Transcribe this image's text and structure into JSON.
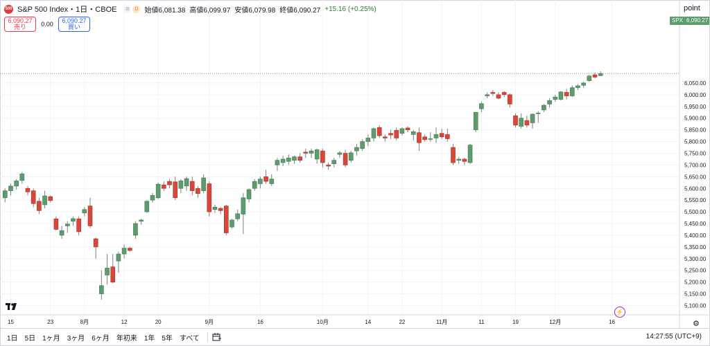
{
  "header": {
    "logo_text": "500",
    "title": "S&P 500 Index・1日・CBOE",
    "indicator_dot": "⊙",
    "delay_badge": "D",
    "open": "始値6,081.38",
    "high": "高値6,099.97",
    "low": "安値6,079.98",
    "close": "終値6,090.27",
    "change": "+15.16 (+0.25%)"
  },
  "trade": {
    "sell_price": "6,090.27",
    "sell_label": "売り",
    "spread": "0.00",
    "buy_price": "6,090.27",
    "buy_label": "買い"
  },
  "axis": {
    "unit": "point",
    "symbol_tag": "SPX",
    "last_price_tag": "6,090.27"
  },
  "bottom": {
    "ranges": [
      "1日",
      "5日",
      "1ヶ月",
      "3ヶ月",
      "6ヶ月",
      "年初来",
      "1年",
      "5年",
      "すべて"
    ],
    "clock": "14:27:55 (UTC+9)"
  },
  "colors": {
    "up": "#5d9d6d",
    "down": "#d9473a",
    "wick": "#808080",
    "grid": "#f0f3fa"
  },
  "chart_data": {
    "type": "candlestick",
    "title": "S&P 500 Index",
    "ylim": [
      5060,
      6130
    ],
    "yticks": [
      5100,
      5150,
      5200,
      5250,
      5300,
      5350,
      5400,
      5450,
      5500,
      5550,
      5600,
      5650,
      5700,
      5750,
      5800,
      5850,
      5900,
      5950,
      6000,
      6050
    ],
    "ytick_labels": [
      "5,100.00",
      "5,150.00",
      "5,200.00",
      "5,250.00",
      "5,300.00",
      "5,350.00",
      "5,400.00",
      "5,450.00",
      "5,500.00",
      "5,550.00",
      "5,600.00",
      "5,650.00",
      "5,700.00",
      "5,750.00",
      "5,800.00",
      "5,850.00",
      "5,900.00",
      "5,950.00",
      "6,000.00",
      "6,050.00"
    ],
    "xticks": [
      {
        "index": 1,
        "label": "15"
      },
      {
        "index": 8,
        "label": "23"
      },
      {
        "index": 14,
        "label": "8月"
      },
      {
        "index": 21,
        "label": "12"
      },
      {
        "index": 27,
        "label": "20"
      },
      {
        "index": 36,
        "label": "9月"
      },
      {
        "index": 45,
        "label": "16"
      },
      {
        "index": 56,
        "label": "10月"
      },
      {
        "index": 64,
        "label": "14"
      },
      {
        "index": 70,
        "label": "22"
      },
      {
        "index": 77,
        "label": "11月"
      },
      {
        "index": 84,
        "label": "11"
      },
      {
        "index": 90,
        "label": "19"
      },
      {
        "index": 97,
        "label": "12月"
      },
      {
        "index": 107,
        "label": "16"
      }
    ],
    "last_price": 6090.27,
    "candles": [
      [
        5560,
        5600,
        5540,
        5590
      ],
      [
        5590,
        5620,
        5570,
        5610
      ],
      [
        5610,
        5640,
        5595,
        5632
      ],
      [
        5634,
        5670,
        5620,
        5662
      ],
      [
        5600,
        5610,
        5570,
        5585
      ],
      [
        5590,
        5600,
        5520,
        5535
      ],
      [
        5545,
        5560,
        5490,
        5505
      ],
      [
        5530,
        5590,
        5515,
        5568
      ],
      [
        5565,
        5570,
        5540,
        5548
      ],
      [
        5470,
        5480,
        5420,
        5425
      ],
      [
        5400,
        5440,
        5385,
        5420
      ],
      [
        5440,
        5460,
        5410,
        5448
      ],
      [
        5460,
        5480,
        5440,
        5471
      ],
      [
        5470,
        5480,
        5400,
        5415
      ],
      [
        5495,
        5520,
        5480,
        5510
      ],
      [
        5525,
        5560,
        5430,
        5440
      ],
      [
        5385,
        5390,
        5300,
        5350
      ],
      [
        5150,
        5250,
        5125,
        5185
      ],
      [
        5230,
        5320,
        5190,
        5260
      ],
      [
        5265,
        5320,
        5195,
        5200
      ],
      [
        5290,
        5330,
        5240,
        5320
      ],
      [
        5320,
        5360,
        5300,
        5345
      ],
      [
        5345,
        5350,
        5330,
        5335
      ],
      [
        5400,
        5460,
        5385,
        5450
      ],
      [
        5460,
        5470,
        5445,
        5465
      ],
      [
        5500,
        5550,
        5495,
        5545
      ],
      [
        5550,
        5580,
        5540,
        5570
      ],
      [
        5560,
        5625,
        5555,
        5618
      ],
      [
        5615,
        5630,
        5590,
        5600
      ],
      [
        5630,
        5640,
        5600,
        5615
      ],
      [
        5628,
        5650,
        5550,
        5560
      ],
      [
        5600,
        5640,
        5580,
        5632
      ],
      [
        5610,
        5650,
        5590,
        5642
      ],
      [
        5630,
        5650,
        5570,
        5590
      ],
      [
        5600,
        5610,
        5560,
        5578
      ],
      [
        5590,
        5660,
        5580,
        5645
      ],
      [
        5620,
        5630,
        5480,
        5500
      ],
      [
        5510,
        5530,
        5495,
        5520
      ],
      [
        5515,
        5520,
        5490,
        5505
      ],
      [
        5525,
        5530,
        5400,
        5410
      ],
      [
        5435,
        5470,
        5430,
        5465
      ],
      [
        5470,
        5510,
        5460,
        5492
      ],
      [
        5490,
        5580,
        5405,
        5560
      ],
      [
        5555,
        5600,
        5540,
        5595
      ],
      [
        5600,
        5640,
        5590,
        5630
      ],
      [
        5620,
        5650,
        5600,
        5640
      ],
      [
        5650,
        5680,
        5620,
        5630
      ],
      [
        5620,
        5660,
        5610,
        5640
      ],
      [
        5700,
        5730,
        5675,
        5720
      ],
      [
        5710,
        5740,
        5695,
        5725
      ],
      [
        5715,
        5745,
        5700,
        5730
      ],
      [
        5720,
        5740,
        5705,
        5735
      ],
      [
        5735,
        5750,
        5710,
        5720
      ],
      [
        5755,
        5770,
        5730,
        5750
      ],
      [
        5750,
        5770,
        5730,
        5760
      ],
      [
        5725,
        5770,
        5705,
        5765
      ],
      [
        5760,
        5770,
        5690,
        5710
      ],
      [
        5700,
        5710,
        5680,
        5695
      ],
      [
        5705,
        5730,
        5690,
        5720
      ],
      [
        5745,
        5760,
        5730,
        5752
      ],
      [
        5750,
        5765,
        5690,
        5700
      ],
      [
        5720,
        5760,
        5710,
        5752
      ],
      [
        5760,
        5790,
        5740,
        5775
      ],
      [
        5770,
        5810,
        5760,
        5800
      ],
      [
        5800,
        5830,
        5780,
        5815
      ],
      [
        5815,
        5860,
        5800,
        5855
      ],
      [
        5860,
        5870,
        5815,
        5825
      ],
      [
        5820,
        5830,
        5800,
        5815
      ],
      [
        5835,
        5850,
        5810,
        5828
      ],
      [
        5848,
        5860,
        5805,
        5815
      ],
      [
        5835,
        5860,
        5825,
        5855
      ],
      [
        5858,
        5865,
        5840,
        5850
      ],
      [
        5830,
        5850,
        5805,
        5842
      ],
      [
        5838,
        5860,
        5760,
        5795
      ],
      [
        5820,
        5830,
        5800,
        5808
      ],
      [
        5810,
        5840,
        5800,
        5812
      ],
      [
        5815,
        5860,
        5795,
        5830
      ],
      [
        5835,
        5855,
        5810,
        5820
      ],
      [
        5830,
        5855,
        5800,
        5812
      ],
      [
        5775,
        5790,
        5700,
        5710
      ],
      [
        5720,
        5735,
        5705,
        5725
      ],
      [
        5725,
        5730,
        5700,
        5715
      ],
      [
        5710,
        5790,
        5705,
        5785
      ],
      [
        5850,
        5925,
        5840,
        5925
      ],
      [
        5940,
        5970,
        5925,
        5962
      ],
      [
        5995,
        6010,
        5985,
        6000
      ],
      [
        6010,
        6020,
        5995,
        6005
      ],
      [
        6000,
        6010,
        5980,
        5985
      ],
      [
        6010,
        6015,
        5990,
        6000
      ],
      [
        6000,
        6005,
        5945,
        5960
      ],
      [
        5910,
        5920,
        5860,
        5870
      ],
      [
        5865,
        5920,
        5855,
        5900
      ],
      [
        5890,
        5910,
        5860,
        5870
      ],
      [
        5880,
        5920,
        5855,
        5917
      ],
      [
        5920,
        5930,
        5880,
        5922
      ],
      [
        5935,
        5960,
        5925,
        5955
      ],
      [
        5960,
        5985,
        5945,
        5975
      ],
      [
        5980,
        6000,
        5970,
        5990
      ],
      [
        5980,
        6015,
        5975,
        6012
      ],
      [
        6010,
        6025,
        5980,
        5995
      ],
      [
        5995,
        6040,
        5990,
        6030
      ],
      [
        6030,
        6045,
        6020,
        6038
      ],
      [
        6040,
        6055,
        6030,
        6050
      ],
      [
        6060,
        6085,
        6055,
        6080
      ],
      [
        6085,
        6095,
        6070,
        6075
      ],
      [
        6081.38,
        6099.97,
        6079.98,
        6090.27
      ]
    ]
  }
}
